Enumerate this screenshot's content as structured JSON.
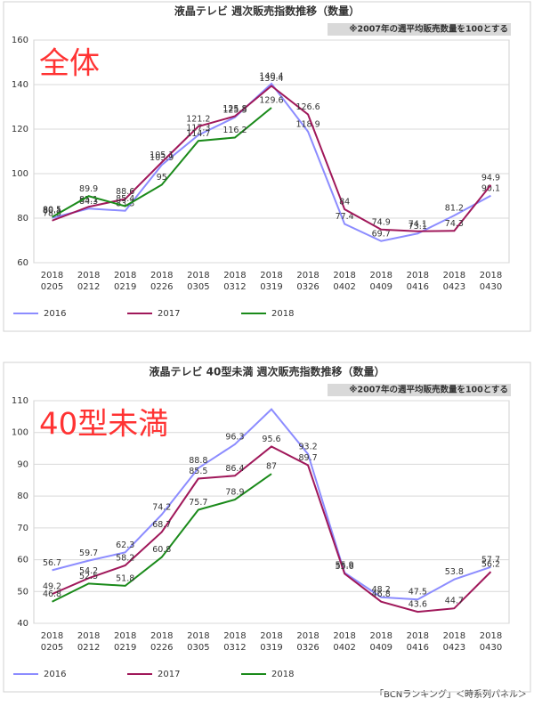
{
  "chart_data": [
    {
      "type": "line",
      "title": "液晶テレビ 週次販売指数推移（数量）",
      "annotation": "※2007年の週平均販売数量を100とする",
      "label": "全体",
      "categories": [
        "2018\n0205",
        "2018\n0212",
        "2018\n0219",
        "2018\n0226",
        "2018\n0305",
        "2018\n0312",
        "2018\n0319",
        "2018\n0326",
        "2018\n0402",
        "2018\n0409",
        "2018\n0416",
        "2018\n0423",
        "2018\n0430"
      ],
      "ylim": [
        60,
        160
      ],
      "yticks": [
        60,
        80,
        100,
        120,
        140,
        160
      ],
      "grid": true,
      "series": [
        {
          "name": "2016",
          "color": "#8c8cff",
          "values": [
            80.1,
            84.3,
            83.3,
            103.9,
            117.3,
            125.3,
            140.4,
            118.9,
            77.4,
            69.7,
            73.1,
            81.2,
            90.1
          ]
        },
        {
          "name": "2017",
          "color": "#a0185a",
          "values": [
            78.9,
            85.1,
            88.6,
            105.1,
            121.2,
            125.8,
            139.4,
            126.6,
            84,
            74.9,
            74.1,
            74.3,
            94.9
          ]
        },
        {
          "name": "2018",
          "color": "#1a8a1a",
          "values": [
            80.5,
            89.9,
            85.4,
            95,
            114.7,
            116.2,
            129.6,
            null,
            null,
            null,
            null,
            null,
            null
          ]
        }
      ]
    },
    {
      "type": "line",
      "title": "液晶テレビ 40型未満 週次販売指数推移（数量）",
      "annotation": "※2007年の週平均販売数量を100とする",
      "label": "40型未満",
      "categories": [
        "2018\n0205",
        "2018\n0212",
        "2018\n0219",
        "2018\n0226",
        "2018\n0305",
        "2018\n0312",
        "2018\n0319",
        "2018\n0326",
        "2018\n0402",
        "2018\n0409",
        "2018\n0416",
        "2018\n0423",
        "2018\n0430"
      ],
      "ylim": [
        40,
        110
      ],
      "yticks": [
        40,
        50,
        60,
        70,
        80,
        90,
        100,
        110
      ],
      "grid": true,
      "series": [
        {
          "name": "2016",
          "color": "#8c8cff",
          "values": [
            56.7,
            59.7,
            62.3,
            74.2,
            88.8,
            96.3,
            107.3,
            93.2,
            55.9,
            48.2,
            47.5,
            53.8,
            57.7
          ],
          "value_labels": [
            "56.7",
            "59.7",
            "62.3",
            "74.2",
            "88.8",
            "96.3",
            null,
            "93.2",
            "55.9",
            "48.2",
            "47.5",
            "53.8",
            "57.7"
          ]
        },
        {
          "name": "2017",
          "color": "#a0185a",
          "values": [
            49.2,
            54.2,
            58.2,
            68.7,
            85.5,
            86.4,
            95.6,
            89.7,
            55.6,
            46.8,
            43.6,
            44.7,
            56.2
          ]
        },
        {
          "name": "2018",
          "color": "#1a8a1a",
          "values": [
            46.8,
            52.5,
            51.8,
            60.8,
            75.7,
            78.9,
            87,
            null,
            null,
            null,
            null,
            null,
            null
          ]
        }
      ]
    }
  ],
  "footer": "「BCNランキング」＜時系列パネル＞"
}
